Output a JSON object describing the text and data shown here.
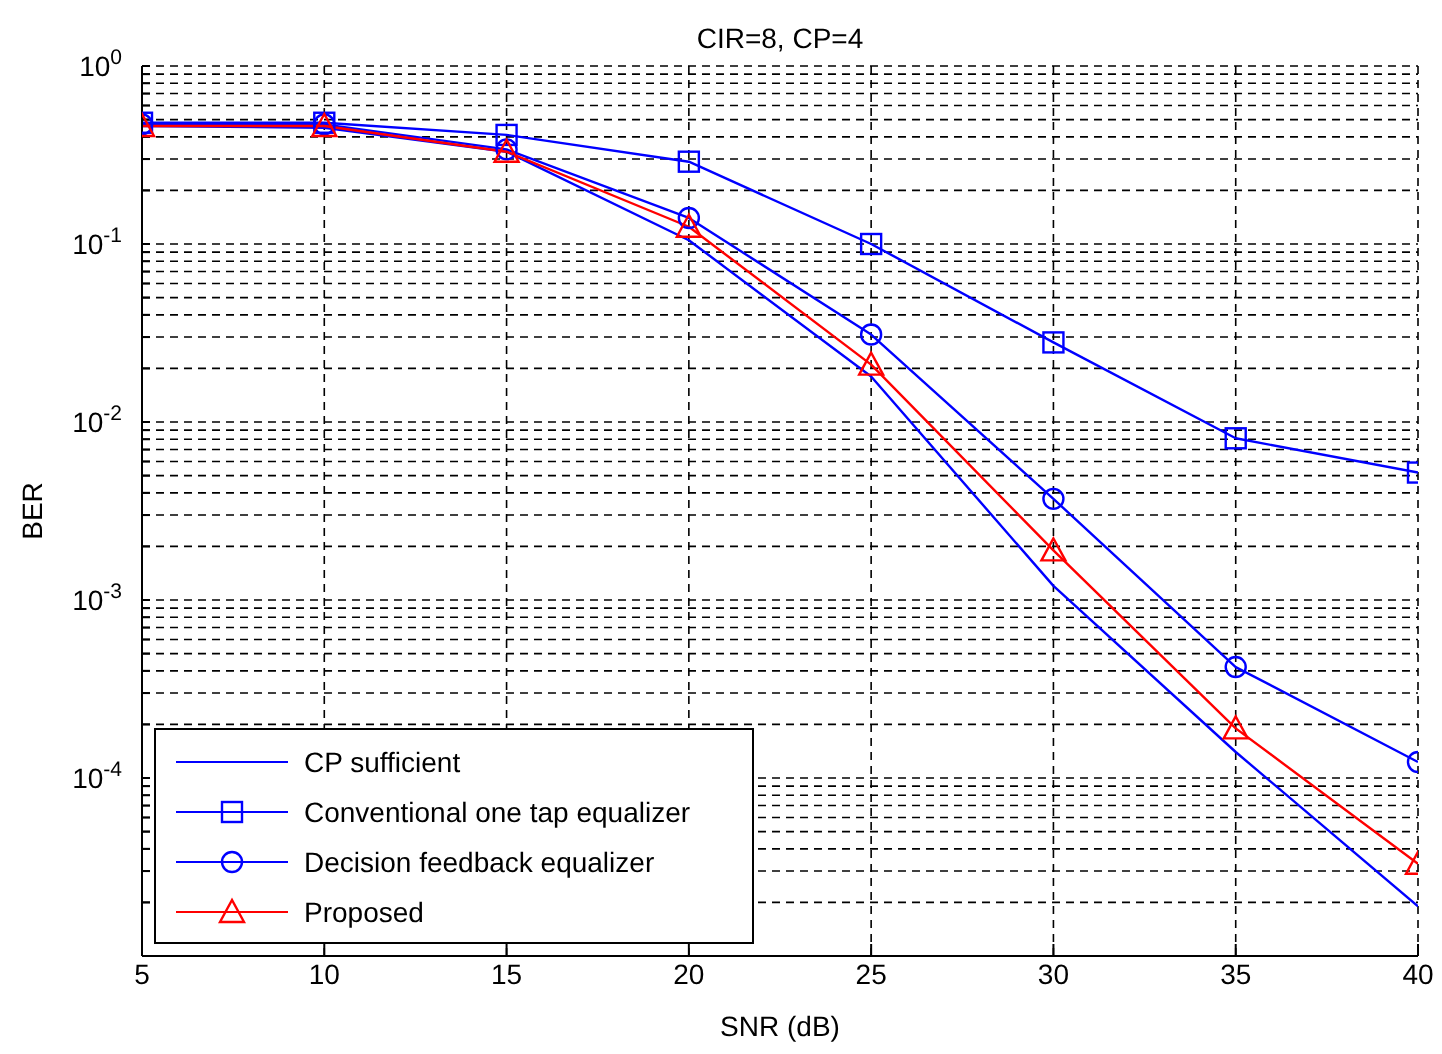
{
  "chart_data": {
    "type": "line",
    "title": "CIR=8, CP=4",
    "xlabel": "SNR (dB)",
    "ylabel": "BER",
    "x": [
      5,
      10,
      15,
      20,
      25,
      30,
      35,
      40
    ],
    "series": [
      {
        "name": "CP sufficient",
        "color": "#0000ff",
        "marker": "none",
        "values": [
          0.46,
          0.45,
          0.33,
          0.105,
          0.018,
          0.0012,
          0.00014,
          1.9e-05
        ]
      },
      {
        "name": "Conventional one tap equalizer",
        "color": "#0000ff",
        "marker": "square",
        "values": [
          0.48,
          0.48,
          0.41,
          0.29,
          0.1,
          0.028,
          0.0081,
          0.0052
        ]
      },
      {
        "name": "Decision feedback equalizer",
        "color": "#0000ff",
        "marker": "circle",
        "values": [
          0.47,
          0.47,
          0.34,
          0.14,
          0.031,
          0.0037,
          0.00042,
          0.000123
        ]
      },
      {
        "name": "Proposed",
        "color": "#ff0000",
        "marker": "triangle",
        "values": [
          0.46,
          0.46,
          0.33,
          0.125,
          0.021,
          0.0019,
          0.00019,
          3.3e-05
        ]
      }
    ],
    "log": "y",
    "xlim": [
      5,
      40
    ],
    "xticks": [
      5,
      10,
      15,
      20,
      25,
      30,
      35,
      40
    ],
    "ylim": [
      1e-05,
      1
    ],
    "yticks": [
      {
        "value": 1e-05,
        "label": null
      },
      {
        "value": 2e-05,
        "label": null
      },
      {
        "value": 3e-05,
        "label": null
      },
      {
        "value": 4e-05,
        "label": null
      },
      {
        "value": 5e-05,
        "label": null
      },
      {
        "value": 6e-05,
        "label": null
      },
      {
        "value": 7e-05,
        "label": null
      },
      {
        "value": 8e-05,
        "label": null
      },
      {
        "value": 9e-05,
        "label": null
      },
      {
        "value": 0.0001,
        "label": "10$^{-4}$"
      },
      {
        "value": 0.0002,
        "label": null
      },
      {
        "value": 0.0003,
        "label": null
      },
      {
        "value": 0.0004,
        "label": null
      },
      {
        "value": 0.0005,
        "label": null
      },
      {
        "value": 0.0006,
        "label": null
      },
      {
        "value": 0.0007,
        "label": null
      },
      {
        "value": 0.0008,
        "label": null
      },
      {
        "value": 0.0009,
        "label": null
      },
      {
        "value": 0.001,
        "label": "10$^{-3}$"
      },
      {
        "value": 0.002,
        "label": null
      },
      {
        "value": 0.003,
        "label": null
      },
      {
        "value": 0.004,
        "label": null
      },
      {
        "value": 0.005,
        "label": null
      },
      {
        "value": 0.006,
        "label": null
      },
      {
        "value": 0.007,
        "label": null
      },
      {
        "value": 0.008,
        "label": null
      },
      {
        "value": 0.009,
        "label": null
      },
      {
        "value": 0.01,
        "label": "10$^{-2}$"
      },
      {
        "value": 0.02,
        "label": null
      },
      {
        "value": 0.03,
        "label": null
      },
      {
        "value": 0.04,
        "label": null
      },
      {
        "value": 0.05,
        "label": null
      },
      {
        "value": 0.06,
        "label": null
      },
      {
        "value": 0.07,
        "label": null
      },
      {
        "value": 0.08,
        "label": null
      },
      {
        "value": 0.09,
        "label": null
      },
      {
        "value": 0.1,
        "label": "10$^{-1}$"
      },
      {
        "value": 0.2,
        "label": null
      },
      {
        "value": 0.3,
        "label": null
      },
      {
        "value": 0.4,
        "label": null
      },
      {
        "value": 0.5,
        "label": null
      },
      {
        "value": 0.6,
        "label": null
      },
      {
        "value": 0.7,
        "label": null
      },
      {
        "value": 0.8,
        "label": null
      },
      {
        "value": 0.9,
        "label": null
      },
      {
        "value": 1,
        "label": "10$^{0}$"
      }
    ],
    "grid": true,
    "legend": "bottom left",
    "line_style": "solid"
  }
}
